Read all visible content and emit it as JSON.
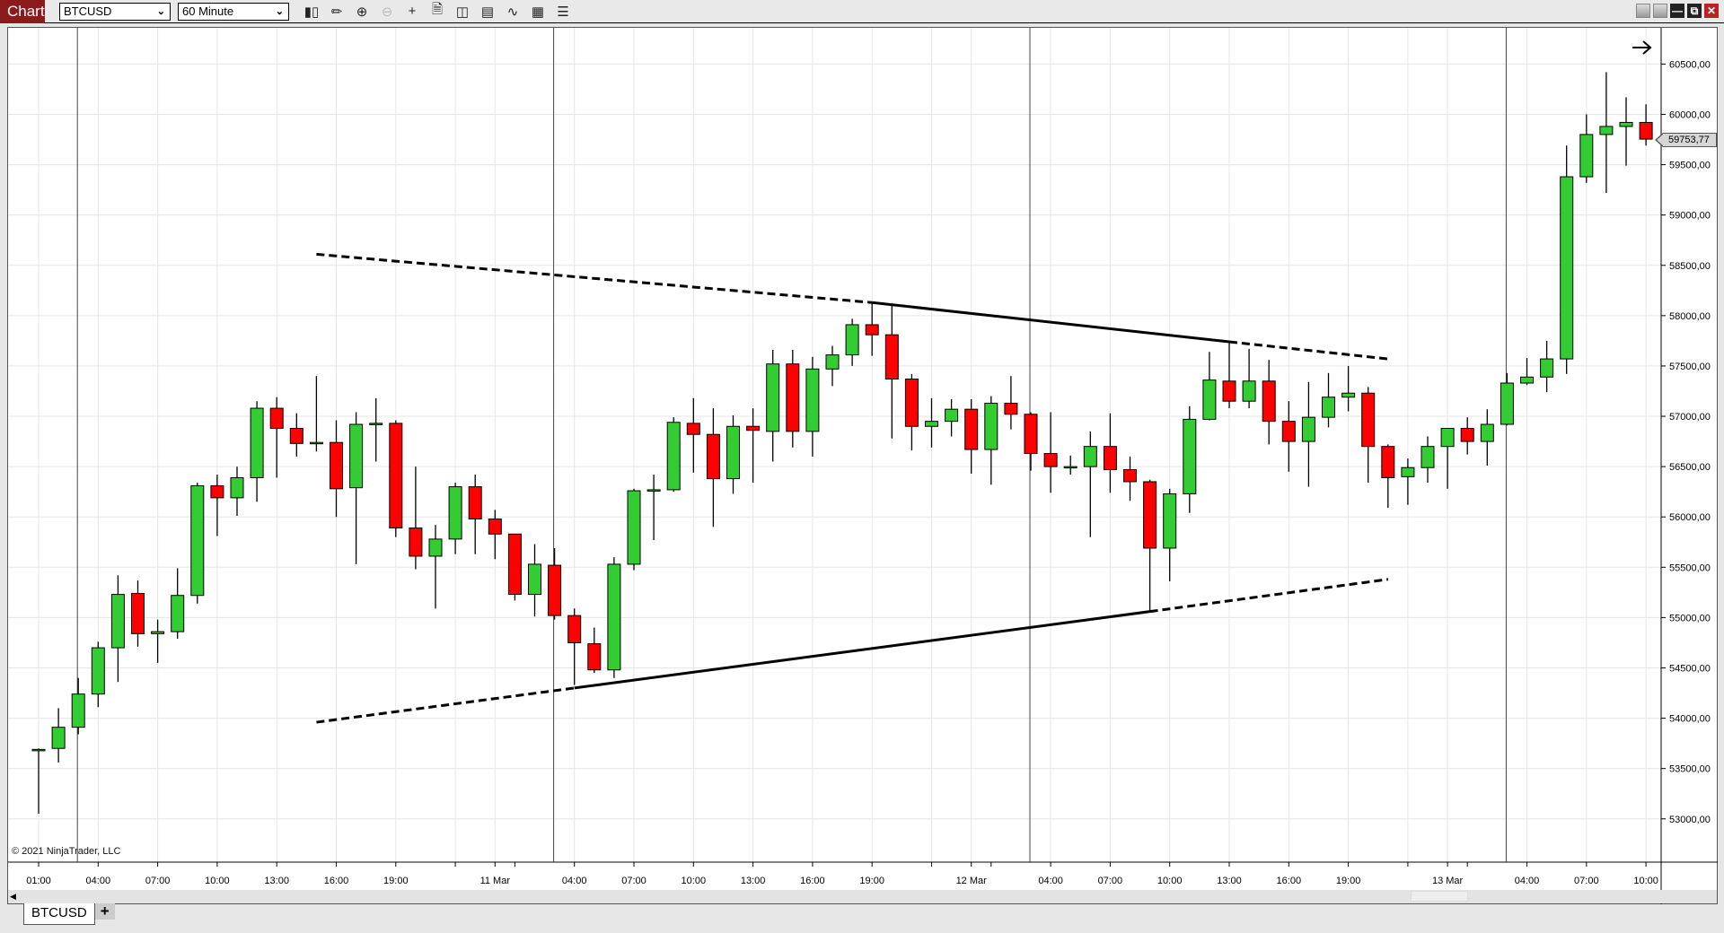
{
  "app_title": "Chart",
  "instrument": "BTCUSD",
  "interval": "60 Minute",
  "toolbar_icons": [
    "bar-type-icon",
    "drawing-tool-icon",
    "zoom-in-icon",
    "zoom-out-icon",
    "crosshair-icon",
    "properties-icon",
    "data-box-icon",
    "chart-trader-icon",
    "strategies-icon",
    "indicators-icon",
    "object-list-icon"
  ],
  "copyright": "© 2021 NinjaTrader, LLC",
  "tabs": [
    {
      "label": "BTCUSD"
    }
  ],
  "add_tab": "+",
  "colors": {
    "up": "#33cc33",
    "down": "#ff0000",
    "wick": "#000000",
    "grid": "#e6e6e6",
    "app_title_bg": "#8b1a1a"
  },
  "chart_data": {
    "type": "candlestick",
    "title": "",
    "ylim": [
      52570,
      60860
    ],
    "grid": true,
    "last_price": "59753,77",
    "y_ticks": [
      "53000,00",
      "53500,00",
      "54000,00",
      "54500,00",
      "55000,00",
      "55500,00",
      "56000,00",
      "56500,00",
      "57000,00",
      "57500,00",
      "58000,00",
      "58500,00",
      "59000,00",
      "59500,00",
      "60000,00",
      "60500,00"
    ],
    "x_ticks": [
      {
        "t": "10 Mar 01:00",
        "label": "01:00"
      },
      {
        "t": "10 Mar 04:00",
        "label": "04:00"
      },
      {
        "t": "10 Mar 07:00",
        "label": "07:00"
      },
      {
        "t": "10 Mar 10:00",
        "label": "10:00"
      },
      {
        "t": "10 Mar 13:00",
        "label": "13:00"
      },
      {
        "t": "10 Mar 16:00",
        "label": "16:00"
      },
      {
        "t": "10 Mar 19:00",
        "label": "19:00"
      },
      {
        "t": "10 Mar 22:00",
        "label": ""
      },
      {
        "t": "11 Mar 00:00",
        "label": "11 Mar"
      },
      {
        "t": "11 Mar 01:00",
        "label": ""
      },
      {
        "t": "11 Mar 04:00",
        "label": "04:00"
      },
      {
        "t": "11 Mar 07:00",
        "label": "07:00"
      },
      {
        "t": "11 Mar 10:00",
        "label": "10:00"
      },
      {
        "t": "11 Mar 13:00",
        "label": "13:00"
      },
      {
        "t": "11 Mar 16:00",
        "label": "16:00"
      },
      {
        "t": "11 Mar 19:00",
        "label": "19:00"
      },
      {
        "t": "11 Mar 22:00",
        "label": ""
      },
      {
        "t": "12 Mar 00:00",
        "label": "12 Mar"
      },
      {
        "t": "12 Mar 01:00",
        "label": ""
      },
      {
        "t": "12 Mar 04:00",
        "label": "04:00"
      },
      {
        "t": "12 Mar 07:00",
        "label": "07:00"
      },
      {
        "t": "12 Mar 10:00",
        "label": "10:00"
      },
      {
        "t": "12 Mar 13:00",
        "label": "13:00"
      },
      {
        "t": "12 Mar 16:00",
        "label": "16:00"
      },
      {
        "t": "12 Mar 19:00",
        "label": "19:00"
      },
      {
        "t": "12 Mar 22:00",
        "label": ""
      },
      {
        "t": "13 Mar 00:00",
        "label": "13 Mar"
      },
      {
        "t": "13 Mar 01:00",
        "label": ""
      },
      {
        "t": "13 Mar 04:00",
        "label": "04:00"
      },
      {
        "t": "13 Mar 07:00",
        "label": "07:00"
      },
      {
        "t": "13 Mar 10:00",
        "label": "10:00"
      }
    ],
    "session_breaks": [
      "10 Mar 03:00",
      "11 Mar 03:00",
      "12 Mar 03:00",
      "13 Mar 03:00"
    ],
    "candles_fields": [
      "time",
      "open",
      "high",
      "low",
      "close"
    ],
    "candles": [
      [
        "10 Mar 01:00",
        53690,
        53700,
        53050,
        53690
      ],
      [
        "10 Mar 02:00",
        53700,
        54100,
        53560,
        53910
      ],
      [
        "10 Mar 03:00",
        53910,
        54400,
        53840,
        54240
      ],
      [
        "10 Mar 04:00",
        54240,
        54760,
        54110,
        54700
      ],
      [
        "10 Mar 05:00",
        54700,
        55420,
        54360,
        55230
      ],
      [
        "10 Mar 06:00",
        55240,
        55370,
        54710,
        54840
      ],
      [
        "10 Mar 07:00",
        54840,
        54980,
        54550,
        54860
      ],
      [
        "10 Mar 08:00",
        54860,
        55490,
        54790,
        55220
      ],
      [
        "10 Mar 09:00",
        55220,
        56340,
        55140,
        56310
      ],
      [
        "10 Mar 10:00",
        56310,
        56420,
        55810,
        56190
      ],
      [
        "10 Mar 11:00",
        56190,
        56500,
        56010,
        56390
      ],
      [
        "10 Mar 12:00",
        56390,
        57150,
        56150,
        57080
      ],
      [
        "10 Mar 13:00",
        57080,
        57190,
        56390,
        56880
      ],
      [
        "10 Mar 14:00",
        56880,
        57030,
        56600,
        56730
      ],
      [
        "10 Mar 15:00",
        56730,
        57400,
        56650,
        56740
      ],
      [
        "10 Mar 16:00",
        56740,
        56960,
        56000,
        56280
      ],
      [
        "10 Mar 17:00",
        56290,
        57040,
        55530,
        56920
      ],
      [
        "10 Mar 18:00",
        56920,
        57180,
        56550,
        56930
      ],
      [
        "10 Mar 19:00",
        56930,
        56960,
        55800,
        55890
      ],
      [
        "10 Mar 20:00",
        55890,
        56500,
        55480,
        55610
      ],
      [
        "10 Mar 21:00",
        55610,
        55920,
        55090,
        55780
      ],
      [
        "10 Mar 22:00",
        55780,
        56340,
        55630,
        56300
      ],
      [
        "10 Mar 23:00",
        56300,
        56420,
        55630,
        55980
      ],
      [
        "11 Mar 00:00",
        55980,
        56070,
        55580,
        55830
      ],
      [
        "11 Mar 01:00",
        55830,
        55830,
        55170,
        55230
      ],
      [
        "11 Mar 02:00",
        55230,
        55730,
        55010,
        55530
      ],
      [
        "11 Mar 03:00",
        55520,
        55690,
        54980,
        55020
      ],
      [
        "11 Mar 04:00",
        55020,
        55090,
        54330,
        54750
      ],
      [
        "11 Mar 05:00",
        54740,
        54900,
        54450,
        54480
      ],
      [
        "11 Mar 06:00",
        54480,
        55600,
        54400,
        55530
      ],
      [
        "11 Mar 07:00",
        55530,
        56280,
        55470,
        56260
      ],
      [
        "11 Mar 08:00",
        56260,
        56420,
        55770,
        56270
      ],
      [
        "11 Mar 09:00",
        56270,
        56990,
        56250,
        56940
      ],
      [
        "11 Mar 10:00",
        56930,
        57180,
        56440,
        56820
      ],
      [
        "11 Mar 11:00",
        56820,
        57080,
        55900,
        56380
      ],
      [
        "11 Mar 12:00",
        56380,
        57010,
        56230,
        56900
      ],
      [
        "11 Mar 13:00",
        56900,
        57080,
        56340,
        56860
      ],
      [
        "11 Mar 14:00",
        56850,
        57660,
        56550,
        57520
      ],
      [
        "11 Mar 15:00",
        57520,
        57660,
        56690,
        56850
      ],
      [
        "11 Mar 16:00",
        56850,
        57590,
        56600,
        57470
      ],
      [
        "11 Mar 17:00",
        57470,
        57700,
        57300,
        57610
      ],
      [
        "11 Mar 18:00",
        57610,
        57970,
        57500,
        57910
      ],
      [
        "11 Mar 19:00",
        57910,
        58130,
        57600,
        57810
      ],
      [
        "11 Mar 20:00",
        57810,
        58100,
        56780,
        57370
      ],
      [
        "11 Mar 21:00",
        57370,
        57420,
        56660,
        56900
      ],
      [
        "11 Mar 22:00",
        56900,
        57180,
        56690,
        56950
      ],
      [
        "11 Mar 23:00",
        56950,
        57170,
        56800,
        57070
      ],
      [
        "12 Mar 00:00",
        57070,
        57170,
        56430,
        56670
      ],
      [
        "12 Mar 01:00",
        56670,
        57200,
        56320,
        57130
      ],
      [
        "12 Mar 02:00",
        57130,
        57400,
        56870,
        57020
      ],
      [
        "12 Mar 03:00",
        57020,
        57040,
        56460,
        56630
      ],
      [
        "12 Mar 04:00",
        56630,
        57040,
        56240,
        56500
      ],
      [
        "12 Mar 05:00",
        56500,
        56610,
        56420,
        56500
      ],
      [
        "12 Mar 06:00",
        56500,
        56850,
        55800,
        56700
      ],
      [
        "12 Mar 07:00",
        56700,
        57030,
        56240,
        56470
      ],
      [
        "12 Mar 08:00",
        56470,
        56600,
        56160,
        56350
      ],
      [
        "12 Mar 09:00",
        56350,
        56370,
        55050,
        55690
      ],
      [
        "12 Mar 10:00",
        55690,
        56280,
        55360,
        56230
      ],
      [
        "12 Mar 11:00",
        56230,
        57100,
        56040,
        56970
      ],
      [
        "12 Mar 12:00",
        56970,
        57640,
        56960,
        57360
      ],
      [
        "12 Mar 13:00",
        57350,
        57740,
        57080,
        57150
      ],
      [
        "12 Mar 14:00",
        57150,
        57670,
        57080,
        57350
      ],
      [
        "12 Mar 15:00",
        57350,
        57560,
        56720,
        56950
      ],
      [
        "12 Mar 16:00",
        56950,
        57150,
        56450,
        56750
      ],
      [
        "12 Mar 17:00",
        56750,
        57340,
        56300,
        56990
      ],
      [
        "12 Mar 18:00",
        56990,
        57430,
        56890,
        57190
      ],
      [
        "12 Mar 19:00",
        57190,
        57500,
        57050,
        57230
      ],
      [
        "12 Mar 20:00",
        57230,
        57290,
        56340,
        56700
      ],
      [
        "12 Mar 21:00",
        56700,
        56720,
        56090,
        56390
      ],
      [
        "12 Mar 22:00",
        56400,
        56580,
        56120,
        56490
      ],
      [
        "12 Mar 23:00",
        56490,
        56800,
        56340,
        56700
      ],
      [
        "13 Mar 00:00",
        56700,
        56880,
        56280,
        56880
      ],
      [
        "13 Mar 01:00",
        56880,
        56990,
        56620,
        56750
      ],
      [
        "13 Mar 02:00",
        56750,
        57070,
        56510,
        56920
      ],
      [
        "13 Mar 03:00",
        56920,
        57430,
        56910,
        57330
      ],
      [
        "13 Mar 04:00",
        57330,
        57580,
        57310,
        57390
      ],
      [
        "13 Mar 05:00",
        57390,
        57750,
        57240,
        57570
      ],
      [
        "13 Mar 06:00",
        57570,
        59690,
        57420,
        59380
      ],
      [
        "13 Mar 07:00",
        59380,
        60000,
        59320,
        59800
      ],
      [
        "13 Mar 08:00",
        59800,
        60420,
        59220,
        59880
      ],
      [
        "13 Mar 09:00",
        59880,
        60170,
        59490,
        59920
      ],
      [
        "13 Mar 10:00",
        59920,
        60100,
        59690,
        59753.77
      ]
    ],
    "drawings": [
      {
        "name": "upper-trendline",
        "points": [
          [
            "10 Mar 15:00",
            58610
          ],
          [
            "11 Mar 19:00",
            58130
          ],
          [
            "12 Mar 13:00",
            57740
          ],
          [
            "12 Mar 21:00",
            57570
          ]
        ],
        "styles": [
          "dashed",
          "solid",
          "dashed"
        ]
      },
      {
        "name": "lower-trendline",
        "points": [
          [
            "10 Mar 15:00",
            53960
          ],
          [
            "11 Mar 04:00",
            54300
          ],
          [
            "12 Mar 09:00",
            55060
          ],
          [
            "12 Mar 21:00",
            55380
          ]
        ],
        "styles": [
          "dashed",
          "solid",
          "dashed"
        ]
      }
    ]
  }
}
